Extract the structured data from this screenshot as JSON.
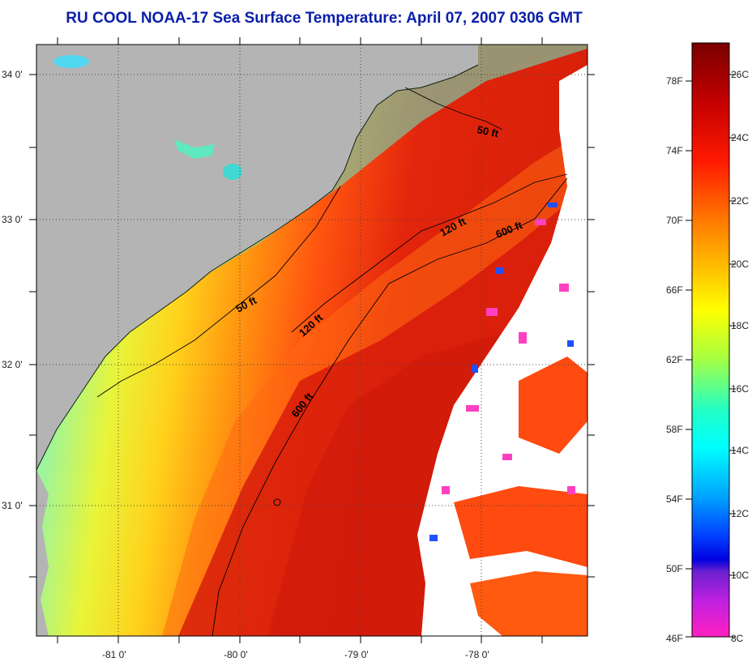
{
  "title": "RU COOL  NOAA-17  Sea Surface Temperature:  April 07, 2007 0306 GMT",
  "map": {
    "lat_labels": [
      "34 0'",
      "33 0'",
      "32 0'",
      "31 0'"
    ],
    "lon_labels": [
      "-81 0'",
      "-80 0'",
      "-79 0'",
      "-78 0'"
    ],
    "contours": [
      {
        "label": "50 ft",
        "depth": 50
      },
      {
        "label": "50 ft",
        "depth": 50
      },
      {
        "label": "120 ft",
        "depth": 120
      },
      {
        "label": "120 ft",
        "depth": 120
      },
      {
        "label": "600 ft",
        "depth": 600
      },
      {
        "label": "600 ft",
        "depth": 600
      }
    ],
    "colors": {
      "land": "#b3b3b3",
      "cloud": "#ffffff",
      "warm": "#d81a0a",
      "mid": "#ff8c00",
      "cool": "#f0f020",
      "cold": "#40e0d0"
    }
  },
  "colorbar": {
    "fahrenheit": [
      "78F",
      "74F",
      "70F",
      "66F",
      "62F",
      "58F",
      "54F",
      "50F",
      "46F"
    ],
    "celsius": [
      "26C",
      "24C",
      "22C",
      "20C",
      "18C",
      "16C",
      "14C",
      "12C",
      "10C",
      "8C"
    ]
  }
}
